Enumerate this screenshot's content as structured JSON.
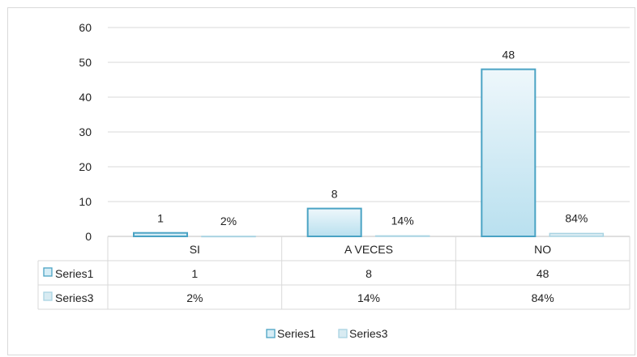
{
  "chart_data": {
    "type": "bar",
    "categories": [
      "SI",
      "A VECES",
      "NO"
    ],
    "series": [
      {
        "name": "Series1",
        "values": [
          1,
          8,
          48
        ],
        "labels": [
          "1",
          "8",
          "48"
        ],
        "color": "#4aa3c4"
      },
      {
        "name": "Series3",
        "values": [
          0.02,
          0.14,
          0.84
        ],
        "labels": [
          "2%",
          "14%",
          "84%"
        ],
        "color": "#a9d3e2"
      }
    ],
    "yticks": [
      "0",
      "10",
      "20",
      "30",
      "40",
      "50",
      "60"
    ],
    "ylim": [
      0,
      60
    ],
    "grid": true,
    "legend": "bottom",
    "data_table": true
  }
}
